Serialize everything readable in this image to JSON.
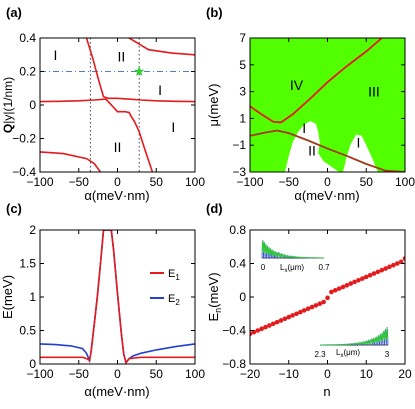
{
  "colors": {
    "red": "#e41a1c",
    "blue": "#2040d0",
    "green": "#52ff00",
    "dark_green": "#1a7a1a",
    "dashed_blue": "#5080c0",
    "marker_green": "#33cc33",
    "black": "#000000"
  },
  "chart_data": [
    {
      "panel": "(a)",
      "type": "line",
      "xlabel": "α(meV·nm)",
      "ylabel_parts": [
        "Q",
        "|y|(1/nm)"
      ],
      "xlim": [
        -100,
        100
      ],
      "ylim": [
        -0.4,
        0.4
      ],
      "xticks": [
        "−100",
        "−50",
        "0",
        "50",
        "100"
      ],
      "yticks": [
        "−0.4",
        "−0.2",
        "0",
        "0.2",
        "0.4"
      ],
      "region_labels": [
        {
          "text": "I",
          "x": -80,
          "y": 0.3
        },
        {
          "text": "II",
          "x": 5,
          "y": 0.29
        },
        {
          "text": "I",
          "x": 55,
          "y": 0.09
        },
        {
          "text": "I",
          "x": 72,
          "y": -0.13
        },
        {
          "text": "II",
          "x": 0,
          "y": -0.25
        }
      ],
      "guides": {
        "dashed_y": 0.2,
        "dotted_x": [
          -35,
          28
        ]
      },
      "marker": {
        "shape": "star",
        "x": 28,
        "y": 0.2
      },
      "series": [
        {
          "color": "red",
          "points": [
            [
              -40,
              0.4
            ],
            [
              -32,
              0.28
            ],
            [
              -25,
              0.16
            ],
            [
              -20,
              0.08
            ],
            [
              -18,
              0.05
            ],
            [
              -12,
              0.04
            ],
            [
              0,
              0.04
            ],
            [
              15,
              0.035
            ],
            [
              30,
              0.03
            ],
            [
              50,
              0.025
            ],
            [
              75,
              0.022
            ],
            [
              100,
              0.02
            ]
          ]
        },
        {
          "color": "red",
          "points": [
            [
              -100,
              0.02
            ],
            [
              -75,
              0.022
            ],
            [
              -50,
              0.025
            ],
            [
              -30,
              0.03
            ],
            [
              -15,
              0.035
            ],
            [
              0,
              -0.04
            ],
            [
              10,
              -0.04
            ],
            [
              15,
              -0.045
            ],
            [
              18,
              -0.07
            ],
            [
              22,
              -0.1
            ],
            [
              28,
              -0.16
            ],
            [
              35,
              -0.26
            ],
            [
              40,
              -0.33
            ],
            [
              45,
              -0.4
            ]
          ]
        },
        {
          "color": "red",
          "points": [
            [
              -100,
              -0.28
            ],
            [
              -70,
              -0.29
            ],
            [
              -40,
              -0.32
            ],
            [
              -30,
              -0.35
            ],
            [
              -22,
              -0.4
            ]
          ]
        },
        {
          "color": "red",
          "points": [
            [
              15,
              0.4
            ],
            [
              40,
              0.33
            ],
            [
              70,
              0.31
            ],
            [
              100,
              0.3
            ]
          ]
        }
      ]
    },
    {
      "panel": "(b)",
      "type": "area",
      "xlabel": "α(meV·nm)",
      "ylabel": "μ(meV)",
      "xlim": [
        -100,
        100
      ],
      "ylim": [
        -3,
        7
      ],
      "xticks": [
        "−100",
        "−50",
        "0",
        "50",
        "100"
      ],
      "yticks": [
        "−3",
        "−1",
        "1",
        "3",
        "5",
        "7"
      ],
      "region_labels": [
        {
          "text": "IV",
          "x": -40,
          "y": 3.5
        },
        {
          "text": "III",
          "x": 60,
          "y": 3.0
        },
        {
          "text": "I",
          "x": -30,
          "y": 0.3
        },
        {
          "text": "II",
          "x": -20,
          "y": -1.4
        },
        {
          "text": "I",
          "x": 40,
          "y": -0.8
        }
      ],
      "series": [
        {
          "name": "upper boundary",
          "color": "red",
          "points": [
            [
              -100,
              1.9
            ],
            [
              -85,
              1.3
            ],
            [
              -70,
              0.75
            ],
            [
              -60,
              0.7
            ],
            [
              -45,
              1.3
            ],
            [
              -20,
              2.6
            ],
            [
              0,
              3.7
            ],
            [
              25,
              4.9
            ],
            [
              50,
              6.0
            ],
            [
              70,
              7.0
            ]
          ]
        },
        {
          "name": "lower boundary",
          "color": "dark_green",
          "points": [
            [
              -100,
              -0.3
            ],
            [
              -80,
              -0.05
            ],
            [
              -65,
              0.1
            ],
            [
              -50,
              -0.1
            ],
            [
              -25,
              -0.65
            ],
            [
              0,
              -1.25
            ],
            [
              25,
              -1.8
            ],
            [
              50,
              -2.4
            ],
            [
              75,
              -2.9
            ],
            [
              100,
              -3.0
            ]
          ]
        }
      ]
    },
    {
      "panel": "(c)",
      "type": "line",
      "xlabel": "α(meV·nm)",
      "ylabel": "E(meV)",
      "xlim": [
        -100,
        100
      ],
      "ylim": [
        0,
        2
      ],
      "xticks": [
        "−100",
        "−50",
        "0",
        "50",
        "100"
      ],
      "yticks": [
        "0",
        "0.5",
        "1",
        "1.5",
        "2"
      ],
      "legend": {
        "position": "right",
        "entries": [
          {
            "label": "E",
            "sub": "1",
            "color": "red"
          },
          {
            "label": "E",
            "sub": "2",
            "color": "blue"
          }
        ]
      },
      "series": [
        {
          "name": "E1",
          "color": "red",
          "points": [
            [
              -100,
              0.1
            ],
            [
              -80,
              0.1
            ],
            [
              -60,
              0.1
            ],
            [
              -45,
              0.1
            ],
            [
              -40,
              0.08
            ],
            [
              -36,
              0.05
            ],
            [
              -34,
              0.2
            ],
            [
              -30,
              0.6
            ],
            [
              -26,
              1.0
            ],
            [
              -22,
              1.5
            ],
            [
              -18,
              2.0
            ],
            [
              -8,
              2.0
            ],
            [
              -5,
              1.7
            ],
            [
              0,
              1.05
            ],
            [
              5,
              0.45
            ],
            [
              8,
              0.15
            ],
            [
              11,
              0.02
            ],
            [
              15,
              0.08
            ],
            [
              30,
              0.1
            ],
            [
              50,
              0.1
            ],
            [
              100,
              0.1
            ]
          ]
        },
        {
          "name": "E2",
          "color": "blue",
          "points": [
            [
              -100,
              0.3
            ],
            [
              -80,
              0.29
            ],
            [
              -60,
              0.27
            ],
            [
              -45,
              0.23
            ],
            [
              -40,
              0.16
            ],
            [
              -36,
              0.05
            ],
            [
              -34,
              0.2
            ],
            [
              -30,
              0.6
            ],
            [
              -26,
              1.0
            ],
            [
              -22,
              1.5
            ],
            [
              -18,
              2.0
            ],
            [
              -8,
              2.0
            ],
            [
              -5,
              1.7
            ],
            [
              0,
              1.05
            ],
            [
              5,
              0.45
            ],
            [
              8,
              0.15
            ],
            [
              11,
              0.02
            ],
            [
              15,
              0.08
            ],
            [
              20,
              0.12
            ],
            [
              30,
              0.16
            ],
            [
              50,
              0.21
            ],
            [
              75,
              0.26
            ],
            [
              100,
              0.3
            ]
          ]
        }
      ]
    },
    {
      "panel": "(d)",
      "type": "scatter",
      "xlabel": "n",
      "ylabel_parts": [
        "E",
        "n",
        "(meV)"
      ],
      "xlim": [
        -20,
        20
      ],
      "ylim": [
        -0.8,
        0.8
      ],
      "xticks": [
        "−20",
        "−10",
        "0",
        "10",
        "20"
      ],
      "yticks": [
        "−0.8",
        "−0.4",
        "0",
        "0.4",
        "0.8"
      ],
      "series": [
        {
          "name": "E_n",
          "color": "red",
          "x": [
            -20,
            -19,
            -18,
            -17,
            -16,
            -15,
            -14,
            -13,
            -12,
            -11,
            -10,
            -9,
            -8,
            -7,
            -6,
            -5,
            -4,
            -3,
            -2,
            -1,
            0,
            1,
            2,
            3,
            4,
            5,
            6,
            7,
            8,
            9,
            10,
            11,
            12,
            13,
            14,
            15,
            16,
            17,
            18,
            19,
            20
          ],
          "y": [
            -0.44,
            -0.42,
            -0.4,
            -0.38,
            -0.36,
            -0.34,
            -0.32,
            -0.3,
            -0.28,
            -0.26,
            -0.24,
            -0.22,
            -0.2,
            -0.18,
            -0.16,
            -0.14,
            -0.12,
            -0.1,
            -0.08,
            -0.06,
            -0.01,
            0.06,
            0.08,
            0.1,
            0.12,
            0.14,
            0.16,
            0.18,
            0.2,
            0.22,
            0.24,
            0.26,
            0.28,
            0.3,
            0.32,
            0.34,
            0.36,
            0.38,
            0.4,
            0.42,
            0.46
          ]
        }
      ],
      "insets": [
        {
          "position": "top-left",
          "xlabel": "L",
          "xlabel_sub": "x",
          "xlabel_unit": "(μm)",
          "ticks": [
            "0",
            "0.7"
          ]
        },
        {
          "position": "bottom-right",
          "xlabel": "L",
          "xlabel_sub": "x",
          "xlabel_unit": "(μm)",
          "ticks": [
            "2.3",
            "3"
          ]
        }
      ]
    }
  ]
}
